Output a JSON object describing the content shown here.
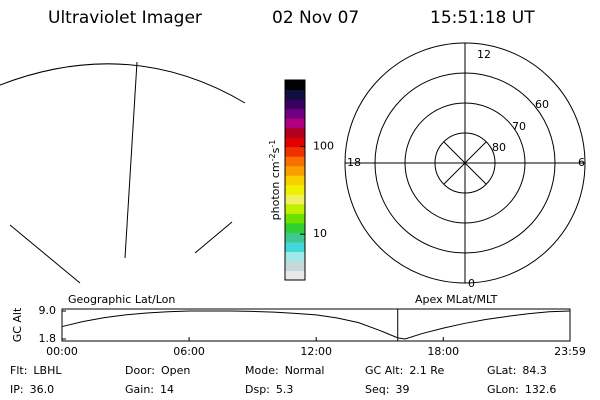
{
  "header": {
    "title": "Ultraviolet Imager",
    "date": "02 Nov 07",
    "time": "15:51:18 UT"
  },
  "chart_data": [
    {
      "type": "colorbar",
      "label": "photon cm",
      "label_exp1": "-2",
      "label_unit2": "s",
      "label_exp2": "-1",
      "ylim": [
        3,
        575
      ],
      "yticks": [
        10,
        100
      ],
      "log": true,
      "colors": [
        "#e8e8e8",
        "#c8d8d8",
        "#a0e8e8",
        "#40d8d8",
        "#40c890",
        "#30d030",
        "#70e000",
        "#c0f000",
        "#f0f060",
        "#f0f000",
        "#f8d000",
        "#f8a000",
        "#f87000",
        "#f03000",
        "#e00000",
        "#b00020",
        "#b00080",
        "#700080",
        "#3a0060",
        "#101040",
        "#000000"
      ]
    },
    {
      "type": "polar",
      "mlt_labels": [
        "12",
        "18",
        "6",
        "0"
      ],
      "lat_labels": [
        "80",
        "70",
        "60"
      ]
    },
    {
      "type": "line",
      "ylabel": "GC Alt",
      "left_label": "Geographic Lat/Lon",
      "right_label": "Apex MLat/MLT",
      "x": [
        0,
        1,
        2,
        3,
        4,
        5,
        6,
        7,
        8,
        9,
        10,
        11,
        12,
        13,
        14,
        15,
        15.85,
        16.2,
        17,
        18,
        19,
        20,
        21,
        22,
        23,
        23.983
      ],
      "series": [
        {
          "color": "#000000",
          "values": [
            5.0,
            6.3,
            7.3,
            8.0,
            8.5,
            8.8,
            9.0,
            9.0,
            9.0,
            8.9,
            8.7,
            8.4,
            8.0,
            7.2,
            6.0,
            4.0,
            2.1,
            1.8,
            3.2,
            4.6,
            5.8,
            6.8,
            7.6,
            8.3,
            8.8,
            9.0
          ]
        }
      ],
      "marker_x": 15.85,
      "marker_color": "#e00000",
      "xlim": [
        0,
        23.983
      ],
      "xticks": [
        {
          "value": 0,
          "label": "00:00"
        },
        {
          "value": 6,
          "label": "06:00"
        },
        {
          "value": 12,
          "label": "12:00"
        },
        {
          "value": 18,
          "label": "18:00"
        },
        {
          "value": 23.983,
          "label": "23:59"
        }
      ],
      "ylim": [
        1.8,
        9.0
      ],
      "yticks": [
        1.8,
        {
          "value": 9.0,
          "label": "9.0"
        }
      ]
    }
  ],
  "footer": {
    "rows": [
      [
        {
          "label": "Flt:",
          "value": "LBHL"
        },
        {
          "label": "Door:",
          "value": "Open"
        },
        {
          "label": "Mode:",
          "value": "Normal"
        },
        {
          "label": "GC Alt:",
          "value": "2.1 Re"
        },
        {
          "label": "GLat:",
          "value": "84.3"
        }
      ],
      [
        {
          "label": "IP:",
          "value": "36.0"
        },
        {
          "label": "Gain:",
          "value": "14"
        },
        {
          "label": "Dsp:",
          "value": "5.3"
        },
        {
          "label": "Seq:",
          "value": "39"
        },
        {
          "label": "GLon:",
          "value": "132.6"
        }
      ]
    ]
  }
}
